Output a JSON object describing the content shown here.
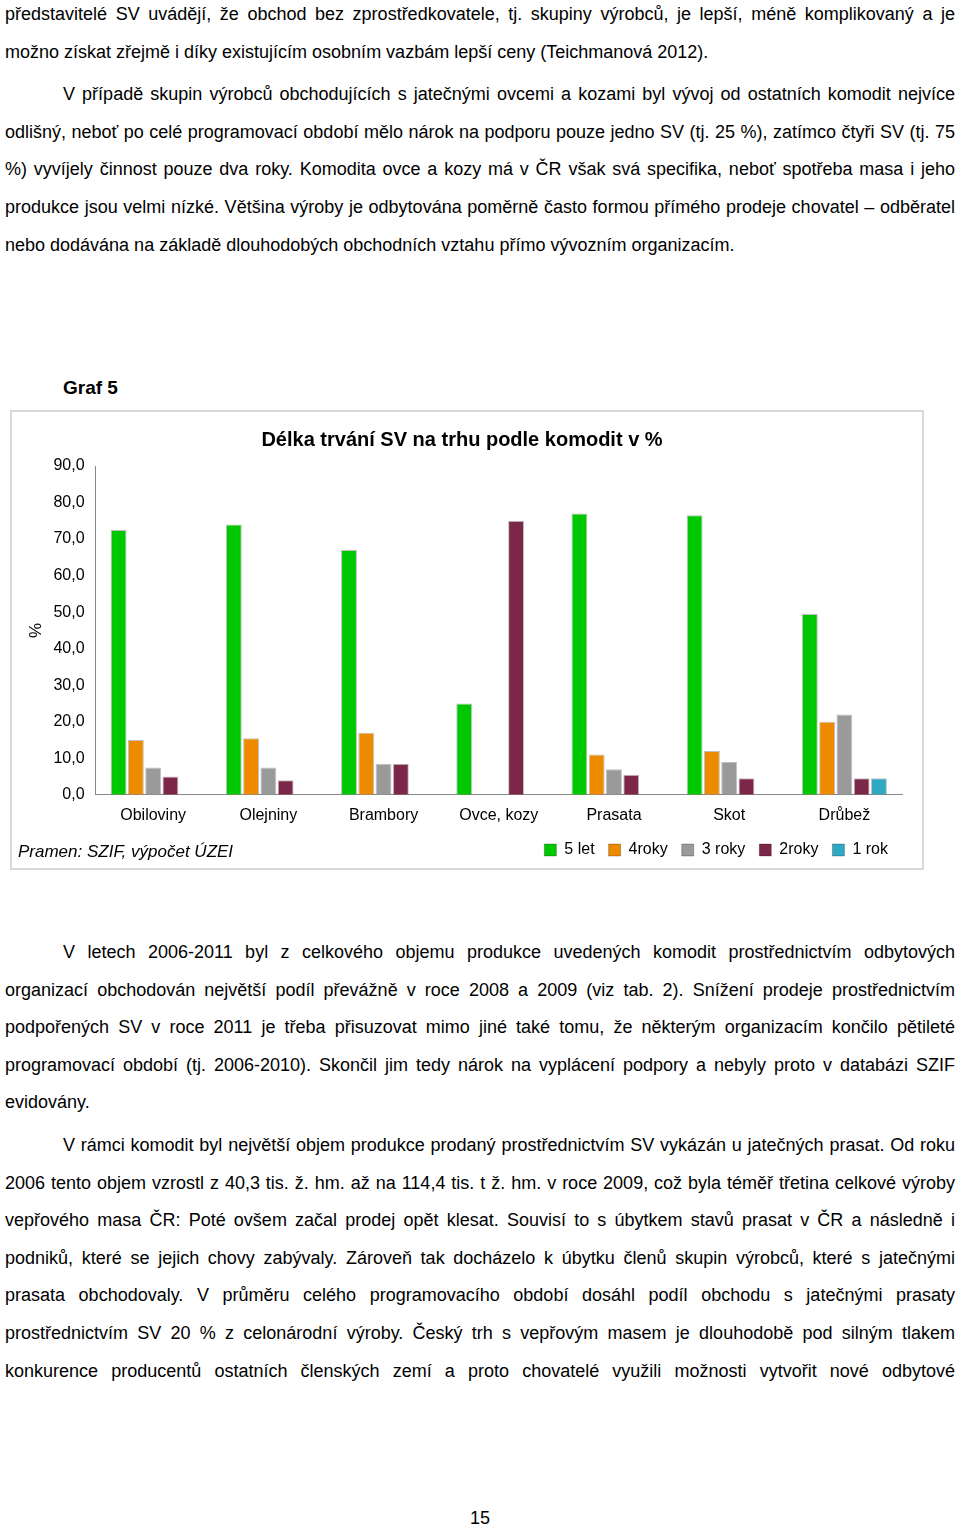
{
  "page": {
    "text_before": [
      "představitelé SV uvádějí, že obchod bez zprostředkovatele, tj. skupiny výrobců, je lepší, méně komplikovaný a je možno získat zřejmě i díky existujícím osobním vazbám lepší ceny (Teichmanová 2012).",
      "V případě skupin výrobců obchodujících s jatečnými ovcemi a kozami byl vývoj od ostatních komodit nejvíce odlišný, neboť po celé programovací období mělo nárok na podporu pouze jedno SV (tj. 25 %), zatímco čtyři SV (tj. 75 %) vyvíjely činnost pouze dva roky. Komodita ovce a kozy má v ČR však svá specifika, neboť spotřeba masa i jeho produkce jsou velmi nízké. Většina výroby je odbytována poměrně často formou přímého prodeje chovatel – odběratel nebo dodávána na základě dlouhodobých obchodních vztahu přímo vývozním organizacím."
    ],
    "figure_label": "Graf 5",
    "source": "Pramen: SZIF, výpočet ÚZEI",
    "text_after": [
      "V letech 2006-2011 byl z celkového objemu produkce uvedených komodit prostřednictvím odbytových organizací obchodován největší podíl převážně v roce 2008 a 2009 (viz tab. 2). Snížení prodeje prostřednictvím podpořených SV v roce 2011 je třeba přisuzovat mimo jiné také tomu, že některým organizacím končilo pětileté programovací období (tj. 2006-2010). Skončil jim tedy nárok na vyplácení podpory a nebyly proto v databázi SZIF evidovány.",
      "V rámci komodit byl největší objem produkce prodaný prostřednictvím SV vykázán u jatečných prasat. Od roku 2006 tento objem vzrostl z 40,3 tis. ž. hm. až na 114,4 tis. t ž. hm. v roce 2009, což byla téměř třetina celkové výroby vepřového masa ČR: Poté ovšem začal prodej opět klesat. Souvisí to s úbytkem stavů prasat v ČR a následně i podniků, které se jejich chovy zabývaly. Zároveň tak docházelo k úbytku členů skupin výrobců, které s jatečnými prasata obchodovaly. V průměru celého programovacího období dosáhl podíl obchodu s jatečnými prasaty prostřednictvím SV 20 % z celonárodní výroby. Český trh s vepřovým masem je dlouhodobě pod silným tlakem konkurence producentů ostatních členských zemí a proto chovatelé využili možnosti vytvořit nové odbytové"
    ],
    "page_number": "15"
  },
  "chart_data": {
    "type": "bar",
    "title": "Délka trvání SV na trhu podle komodit v %",
    "y_label": "%",
    "categories": [
      "Obiloviny",
      "Olejniny",
      "Brambory",
      "Ovce, kozy",
      "Prasata",
      "Skot",
      "Drůbež"
    ],
    "series": [
      {
        "name": "5 let",
        "color": "#00c800",
        "values": [
          72.5,
          74,
          67,
          25,
          77,
          76.5,
          49.5
        ]
      },
      {
        "name": "4roky",
        "color": "#ee8a00",
        "values": [
          15,
          15.5,
          17,
          0,
          11,
          12,
          20
        ]
      },
      {
        "name": "3 roky",
        "color": "#9a9a9a",
        "values": [
          7.5,
          7.5,
          8.5,
          0,
          7,
          9,
          22
        ]
      },
      {
        "name": "2roky",
        "color": "#7c2649",
        "values": [
          5,
          4,
          8.5,
          75,
          5.5,
          4.5,
          4.5
        ]
      },
      {
        "name": "1 rok",
        "color": "#2fa8c4",
        "values": [
          0,
          0,
          0,
          0,
          0,
          0,
          4.5
        ]
      }
    ],
    "ylim": [
      0,
      90
    ],
    "yticks": [
      {
        "value": 0,
        "label": "0,0"
      },
      {
        "value": 10,
        "label": "10,0"
      },
      {
        "value": 20,
        "label": "20,0"
      },
      {
        "value": 30,
        "label": "30,0"
      },
      {
        "value": 40,
        "label": "40,0"
      },
      {
        "value": 50,
        "label": "50,0"
      },
      {
        "value": 60,
        "label": "60,0"
      },
      {
        "value": 70,
        "label": "70,0"
      },
      {
        "value": 80,
        "label": "80,0"
      },
      {
        "value": 90,
        "label": "90,0"
      }
    ],
    "grid": false,
    "legend": "bottom"
  }
}
